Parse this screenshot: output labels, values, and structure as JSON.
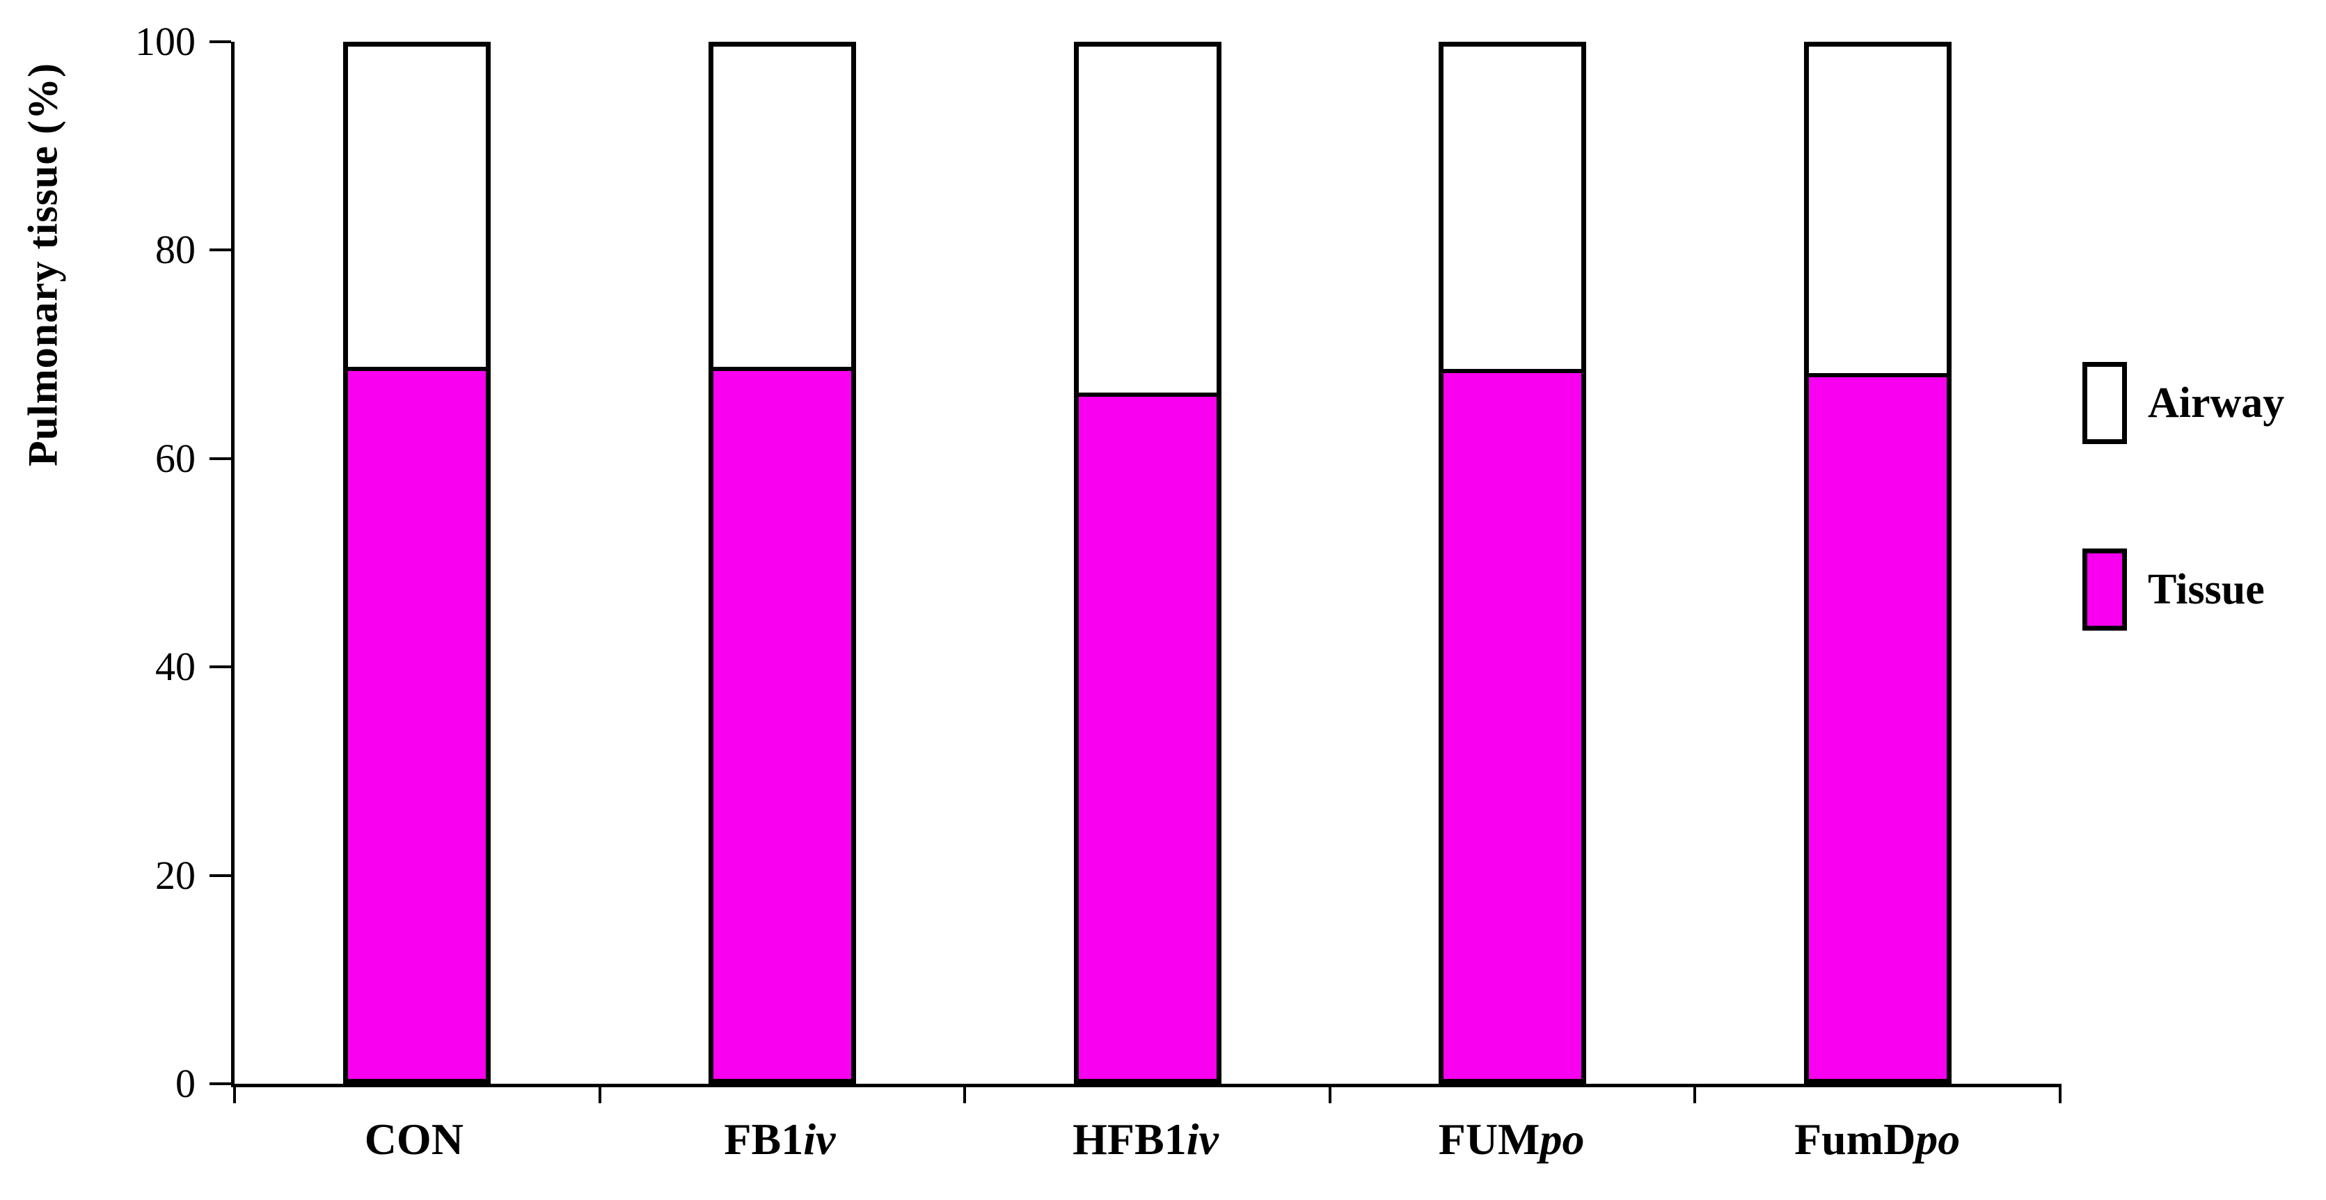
{
  "chart_data": {
    "type": "bar",
    "stacked": true,
    "title": "",
    "xlabel": "",
    "ylabel": "Pulmonary tissue (%)",
    "ylim": [
      0,
      100
    ],
    "ytick_step": 20,
    "ytick_labels": [
      "0",
      "20",
      "40",
      "60",
      "80",
      "100"
    ],
    "grid": false,
    "categories": [
      {
        "text": "CON",
        "italic": ""
      },
      {
        "text": "FB1",
        "italic": "iv"
      },
      {
        "text": "HFB1",
        "italic": "iv"
      },
      {
        "text": "FUM",
        "italic": "po"
      },
      {
        "text": "FumD",
        "italic": "po"
      }
    ],
    "series": [
      {
        "name": "Tissue",
        "color": "#FA00F0",
        "values": [
          69.0,
          69.0,
          66.5,
          68.8,
          68.4
        ]
      },
      {
        "name": "Airway",
        "color": "#FFFFFF",
        "values": [
          31.0,
          31.0,
          33.5,
          31.2,
          31.6
        ]
      }
    ],
    "legend_position": "right",
    "legend": [
      {
        "label": "Airway",
        "color": "#FFFFFF"
      },
      {
        "label": "Tissue",
        "color": "#FA00F0"
      }
    ]
  },
  "colors": {
    "tissue": "#FA00F0",
    "airway": "#FFFFFF",
    "outline": "#000000",
    "background": "#FFFFFF"
  }
}
